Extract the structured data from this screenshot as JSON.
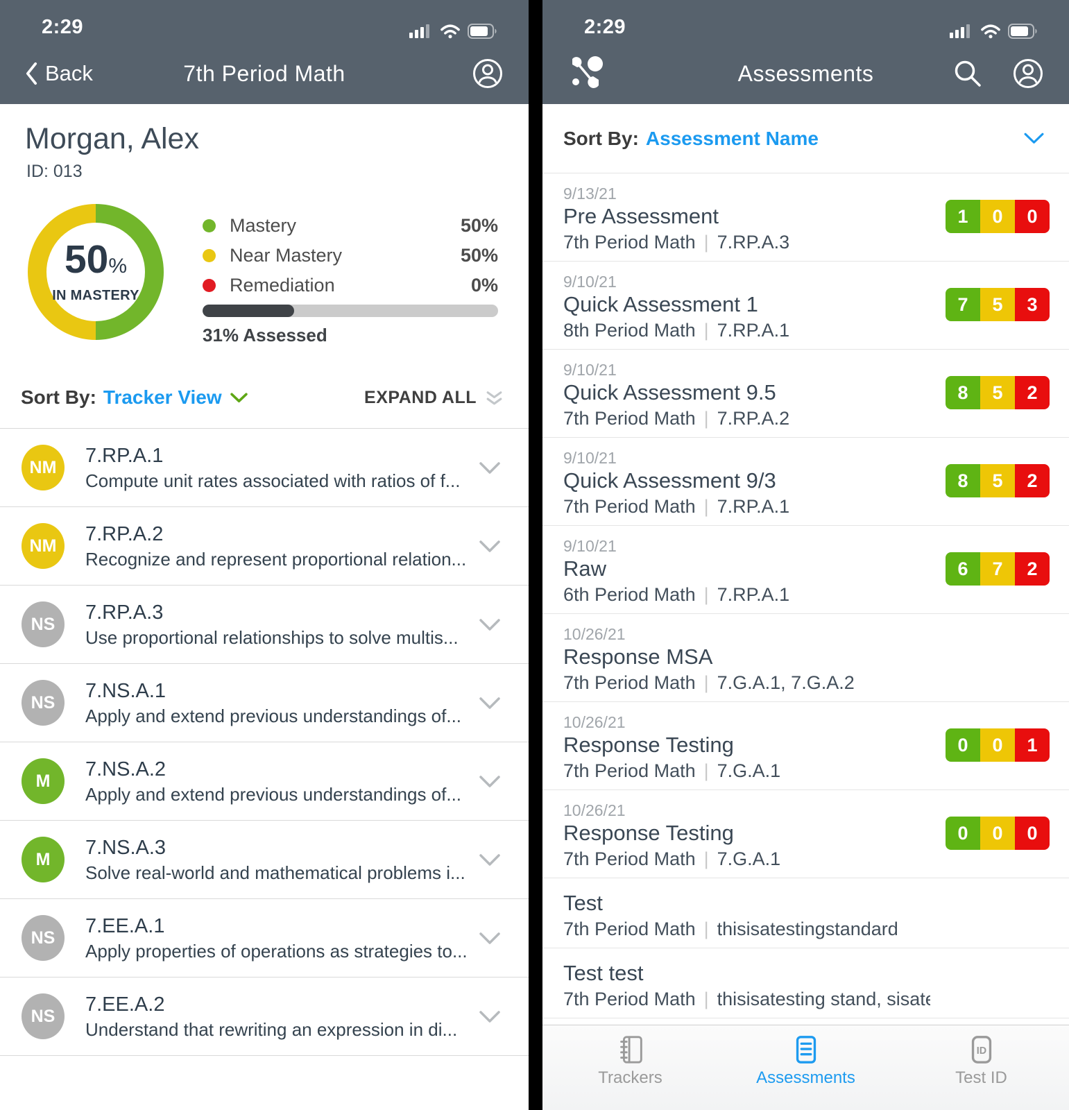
{
  "colors": {
    "header_bg": "#57626d",
    "accent_blue": "#1b9af0",
    "mastery_green": "#72b62b",
    "near_mastery_yellow": "#e9c712",
    "remediation_red": "#e11b22",
    "not_started_gray": "#b2b2b2",
    "chip_green": "#5fb414",
    "chip_yellow": "#eec606",
    "chip_red": "#e80e0e",
    "assessed_bar_fill": "#3f4347"
  },
  "left_screen": {
    "status_time": "2:29",
    "nav": {
      "back_label": "Back",
      "title": "7th Period Math"
    },
    "student": {
      "name": "Morgan, Alex",
      "id_label": "ID: 013"
    },
    "donut": {
      "percent": "50",
      "percent_sign": "%",
      "caption": "IN MASTERY",
      "mastery_pct": 50
    },
    "legend": [
      {
        "label": "Mastery",
        "value": "50%"
      },
      {
        "label": "Near Mastery",
        "value": "50%"
      },
      {
        "label": "Remediation",
        "value": "0%"
      }
    ],
    "assessed": {
      "percent": 31,
      "label": "31% Assessed"
    },
    "sort_by": {
      "prefix": "Sort By:",
      "value": "Tracker View"
    },
    "expand_all_label": "EXPAND ALL",
    "standards": [
      {
        "badge": "NM",
        "badge_class": "nm",
        "code": "7.RP.A.1",
        "desc": "Compute unit rates associated with ratios of f..."
      },
      {
        "badge": "NM",
        "badge_class": "nm",
        "code": "7.RP.A.2",
        "desc": "Recognize and represent proportional relation..."
      },
      {
        "badge": "NS",
        "badge_class": "ns",
        "code": "7.RP.A.3",
        "desc": "Use proportional relationships to solve multis..."
      },
      {
        "badge": "NS",
        "badge_class": "ns",
        "code": "7.NS.A.1",
        "desc": "Apply and extend previous understandings of..."
      },
      {
        "badge": "M",
        "badge_class": "m",
        "code": "7.NS.A.2",
        "desc": "Apply and extend previous understandings of..."
      },
      {
        "badge": "M",
        "badge_class": "m",
        "code": "7.NS.A.3",
        "desc": "Solve real-world and mathematical problems i..."
      },
      {
        "badge": "NS",
        "badge_class": "ns",
        "code": "7.EE.A.1",
        "desc": "Apply properties of operations as strategies to..."
      },
      {
        "badge": "NS",
        "badge_class": "ns",
        "code": "7.EE.A.2",
        "desc": "Understand that rewriting an expression in di..."
      }
    ]
  },
  "right_screen": {
    "status_time": "2:29",
    "nav": {
      "title": "Assessments"
    },
    "sort_by": {
      "prefix": "Sort By:",
      "value": "Assessment Name"
    },
    "assessments": [
      {
        "date": "9/13/21",
        "name": "Pre Assessment",
        "class": "7th Period Math",
        "standards": "7.RP.A.3",
        "scores": {
          "green": "1",
          "yellow": "0",
          "red": "0"
        }
      },
      {
        "date": "9/10/21",
        "name": "Quick Assessment 1",
        "class": "8th Period Math",
        "standards": "7.RP.A.1",
        "scores": {
          "green": "7",
          "yellow": "5",
          "red": "3"
        }
      },
      {
        "date": "9/10/21",
        "name": "Quick Assessment 9.5",
        "class": "7th Period Math",
        "standards": "7.RP.A.2",
        "scores": {
          "green": "8",
          "yellow": "5",
          "red": "2"
        }
      },
      {
        "date": "9/10/21",
        "name": "Quick Assessment 9/3",
        "class": "7th Period Math",
        "standards": "7.RP.A.1",
        "scores": {
          "green": "8",
          "yellow": "5",
          "red": "2"
        }
      },
      {
        "date": "9/10/21",
        "name": "Raw",
        "class": "6th Period Math",
        "standards": "7.RP.A.1",
        "scores": {
          "green": "6",
          "yellow": "7",
          "red": "2"
        }
      },
      {
        "date": "10/26/21",
        "name": "Response MSA",
        "class": "7th Period Math",
        "standards": "7.G.A.1, 7.G.A.2",
        "scores": null
      },
      {
        "date": "10/26/21",
        "name": "Response Testing",
        "class": "7th Period Math",
        "standards": "7.G.A.1",
        "scores": {
          "green": "0",
          "yellow": "0",
          "red": "1"
        }
      },
      {
        "date": "10/26/21",
        "name": "Response Testing",
        "class": "7th Period Math",
        "standards": "7.G.A.1",
        "scores": {
          "green": "0",
          "yellow": "0",
          "red": "0"
        }
      },
      {
        "date": "",
        "name": "Test",
        "class": "7th Period Math",
        "standards": "thisisatestingstandard",
        "scores": null
      },
      {
        "date": "",
        "name": "Test test",
        "class": "7th Period Math",
        "standards": "thisisatesting stand, sisatesting standard",
        "scores": null
      }
    ],
    "tabs": [
      {
        "label": "Trackers"
      },
      {
        "label": "Assessments"
      },
      {
        "label": "Test ID"
      }
    ]
  }
}
